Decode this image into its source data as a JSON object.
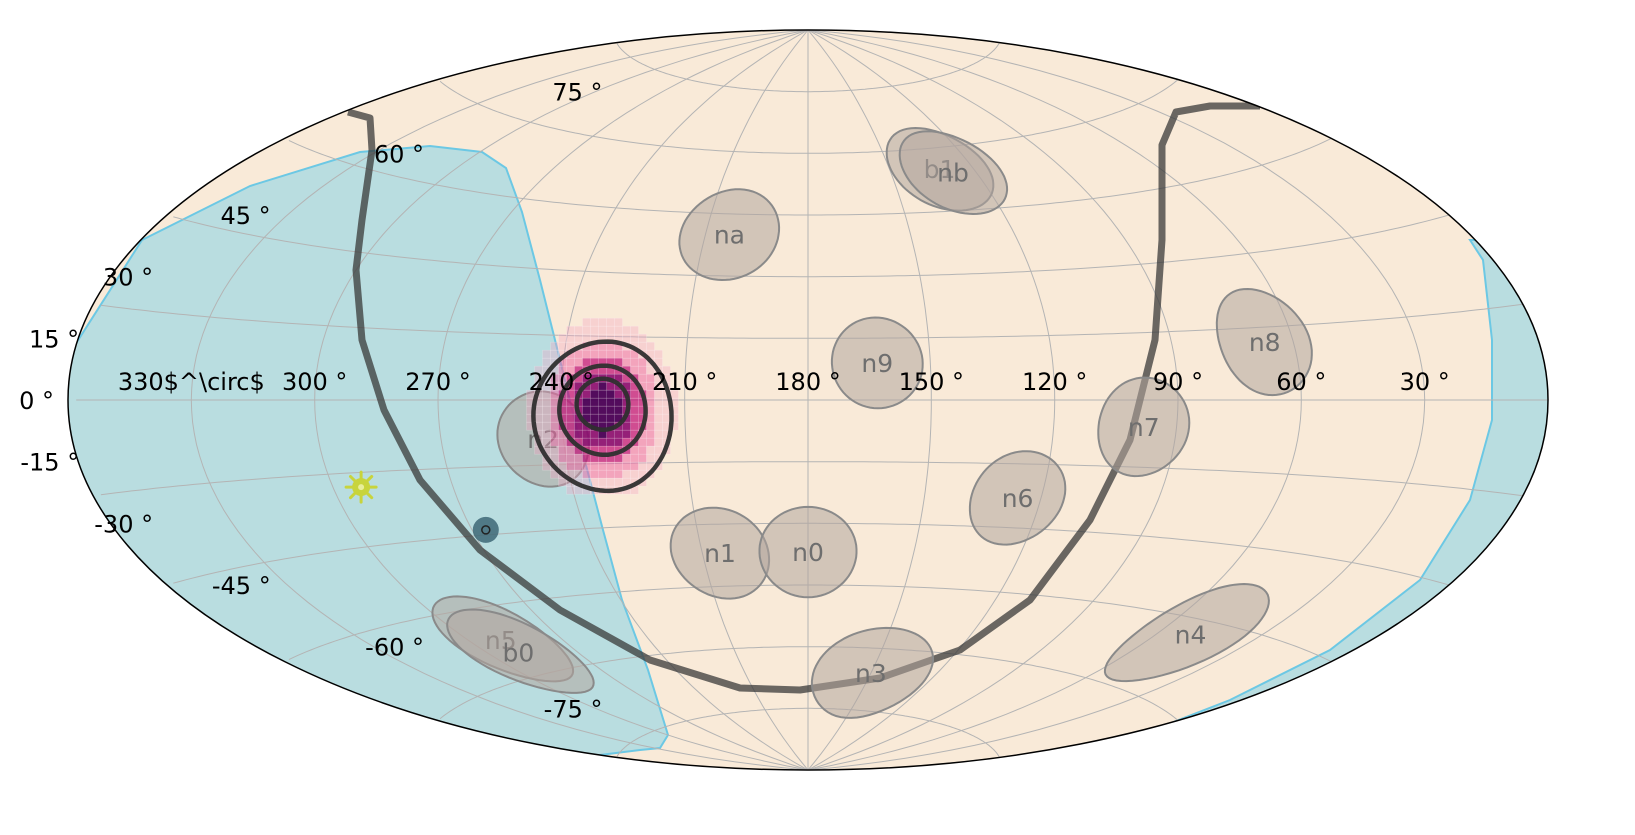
{
  "chart_data": {
    "type": "skymap",
    "projection": "aitoff",
    "ra_direction": "decreasing-left-to-right",
    "grid": true,
    "colors": {
      "sky": "#f9ead8",
      "earth_occultation": "#b9dde0",
      "earth_occultation_edge": "#6cc8e4",
      "grid": "#b4b4b4",
      "detector_fill": "#b2a69e",
      "detector_edge": "#8a8a8a",
      "detector_label": "#6e6e6e",
      "galactic_plane": "#3a3a3a",
      "contour": "#2f2f2f",
      "localization_core": "#4a0056",
      "localization_mid": "#c2187a",
      "localization_outer": "#f4a3c3",
      "sun": "#c8d43c",
      "galactic_center": "#3d6776"
    },
    "ra_ticks": [
      {
        "value": 330,
        "label": "330$^\\circ$",
        "text": "330 °"
      },
      {
        "value": 300,
        "label": "300 °"
      },
      {
        "value": 270,
        "label": "270 °"
      },
      {
        "value": 240,
        "label": "240 °"
      },
      {
        "value": 210,
        "label": "210 °"
      },
      {
        "value": 180,
        "label": "180 °"
      },
      {
        "value": 150,
        "label": "150 °"
      },
      {
        "value": 120,
        "label": "120 °"
      },
      {
        "value": 90,
        "label": "90 °"
      },
      {
        "value": 60,
        "label": "60 °"
      },
      {
        "value": 30,
        "label": "30 °"
      }
    ],
    "dec_ticks": [
      {
        "value": 75,
        "label": "75 °"
      },
      {
        "value": 60,
        "label": "60 °"
      },
      {
        "value": 45,
        "label": "45 °"
      },
      {
        "value": 30,
        "label": "30 °"
      },
      {
        "value": 15,
        "label": "15 °"
      },
      {
        "value": 0,
        "label": "0 °"
      },
      {
        "value": -15,
        "label": "-15 °"
      },
      {
        "value": -30,
        "label": "-30 °"
      },
      {
        "value": -45,
        "label": "-45 °"
      },
      {
        "value": -60,
        "label": "-60 °"
      },
      {
        "value": -75,
        "label": "-75 °"
      }
    ],
    "detectors": [
      {
        "name": "na",
        "ra": 203,
        "dec": 40,
        "radius": 11
      },
      {
        "name": "b1",
        "ra": 132,
        "dec": 55,
        "radius": 10
      },
      {
        "name": "nb",
        "ra": 128,
        "dec": 54,
        "radius": 10
      },
      {
        "name": "n9",
        "ra": 163,
        "dec": 9,
        "radius": 11
      },
      {
        "name": "n8",
        "ra": 67,
        "dec": 12,
        "radius": 11
      },
      {
        "name": "n7",
        "ra": 98,
        "dec": -6,
        "radius": 11
      },
      {
        "name": "n2",
        "ra": 245,
        "dec": -9,
        "radius": 11
      },
      {
        "name": "n6",
        "ra": 126,
        "dec": -23,
        "radius": 11
      },
      {
        "name": "n1",
        "ra": 205,
        "dec": -37,
        "radius": 11
      },
      {
        "name": "n0",
        "ra": 180,
        "dec": -37,
        "radius": 11
      },
      {
        "name": "n4",
        "ra": 50,
        "dec": -48,
        "radius": 11
      },
      {
        "name": "n5",
        "ra": 290,
        "dec": -52,
        "radius": 10
      },
      {
        "name": "b0",
        "ra": 290,
        "dec": -55,
        "radius": 10
      },
      {
        "name": "n3",
        "ra": 150,
        "dec": -66,
        "radius": 11
      }
    ],
    "localization": {
      "ra": 230,
      "dec": -1,
      "contour_radii_deg": [
        6,
        10,
        16
      ]
    },
    "sun": {
      "ra": 293,
      "dec": -18
    },
    "galactic_center": {
      "ra": 266.4,
      "dec": -28.9
    }
  }
}
